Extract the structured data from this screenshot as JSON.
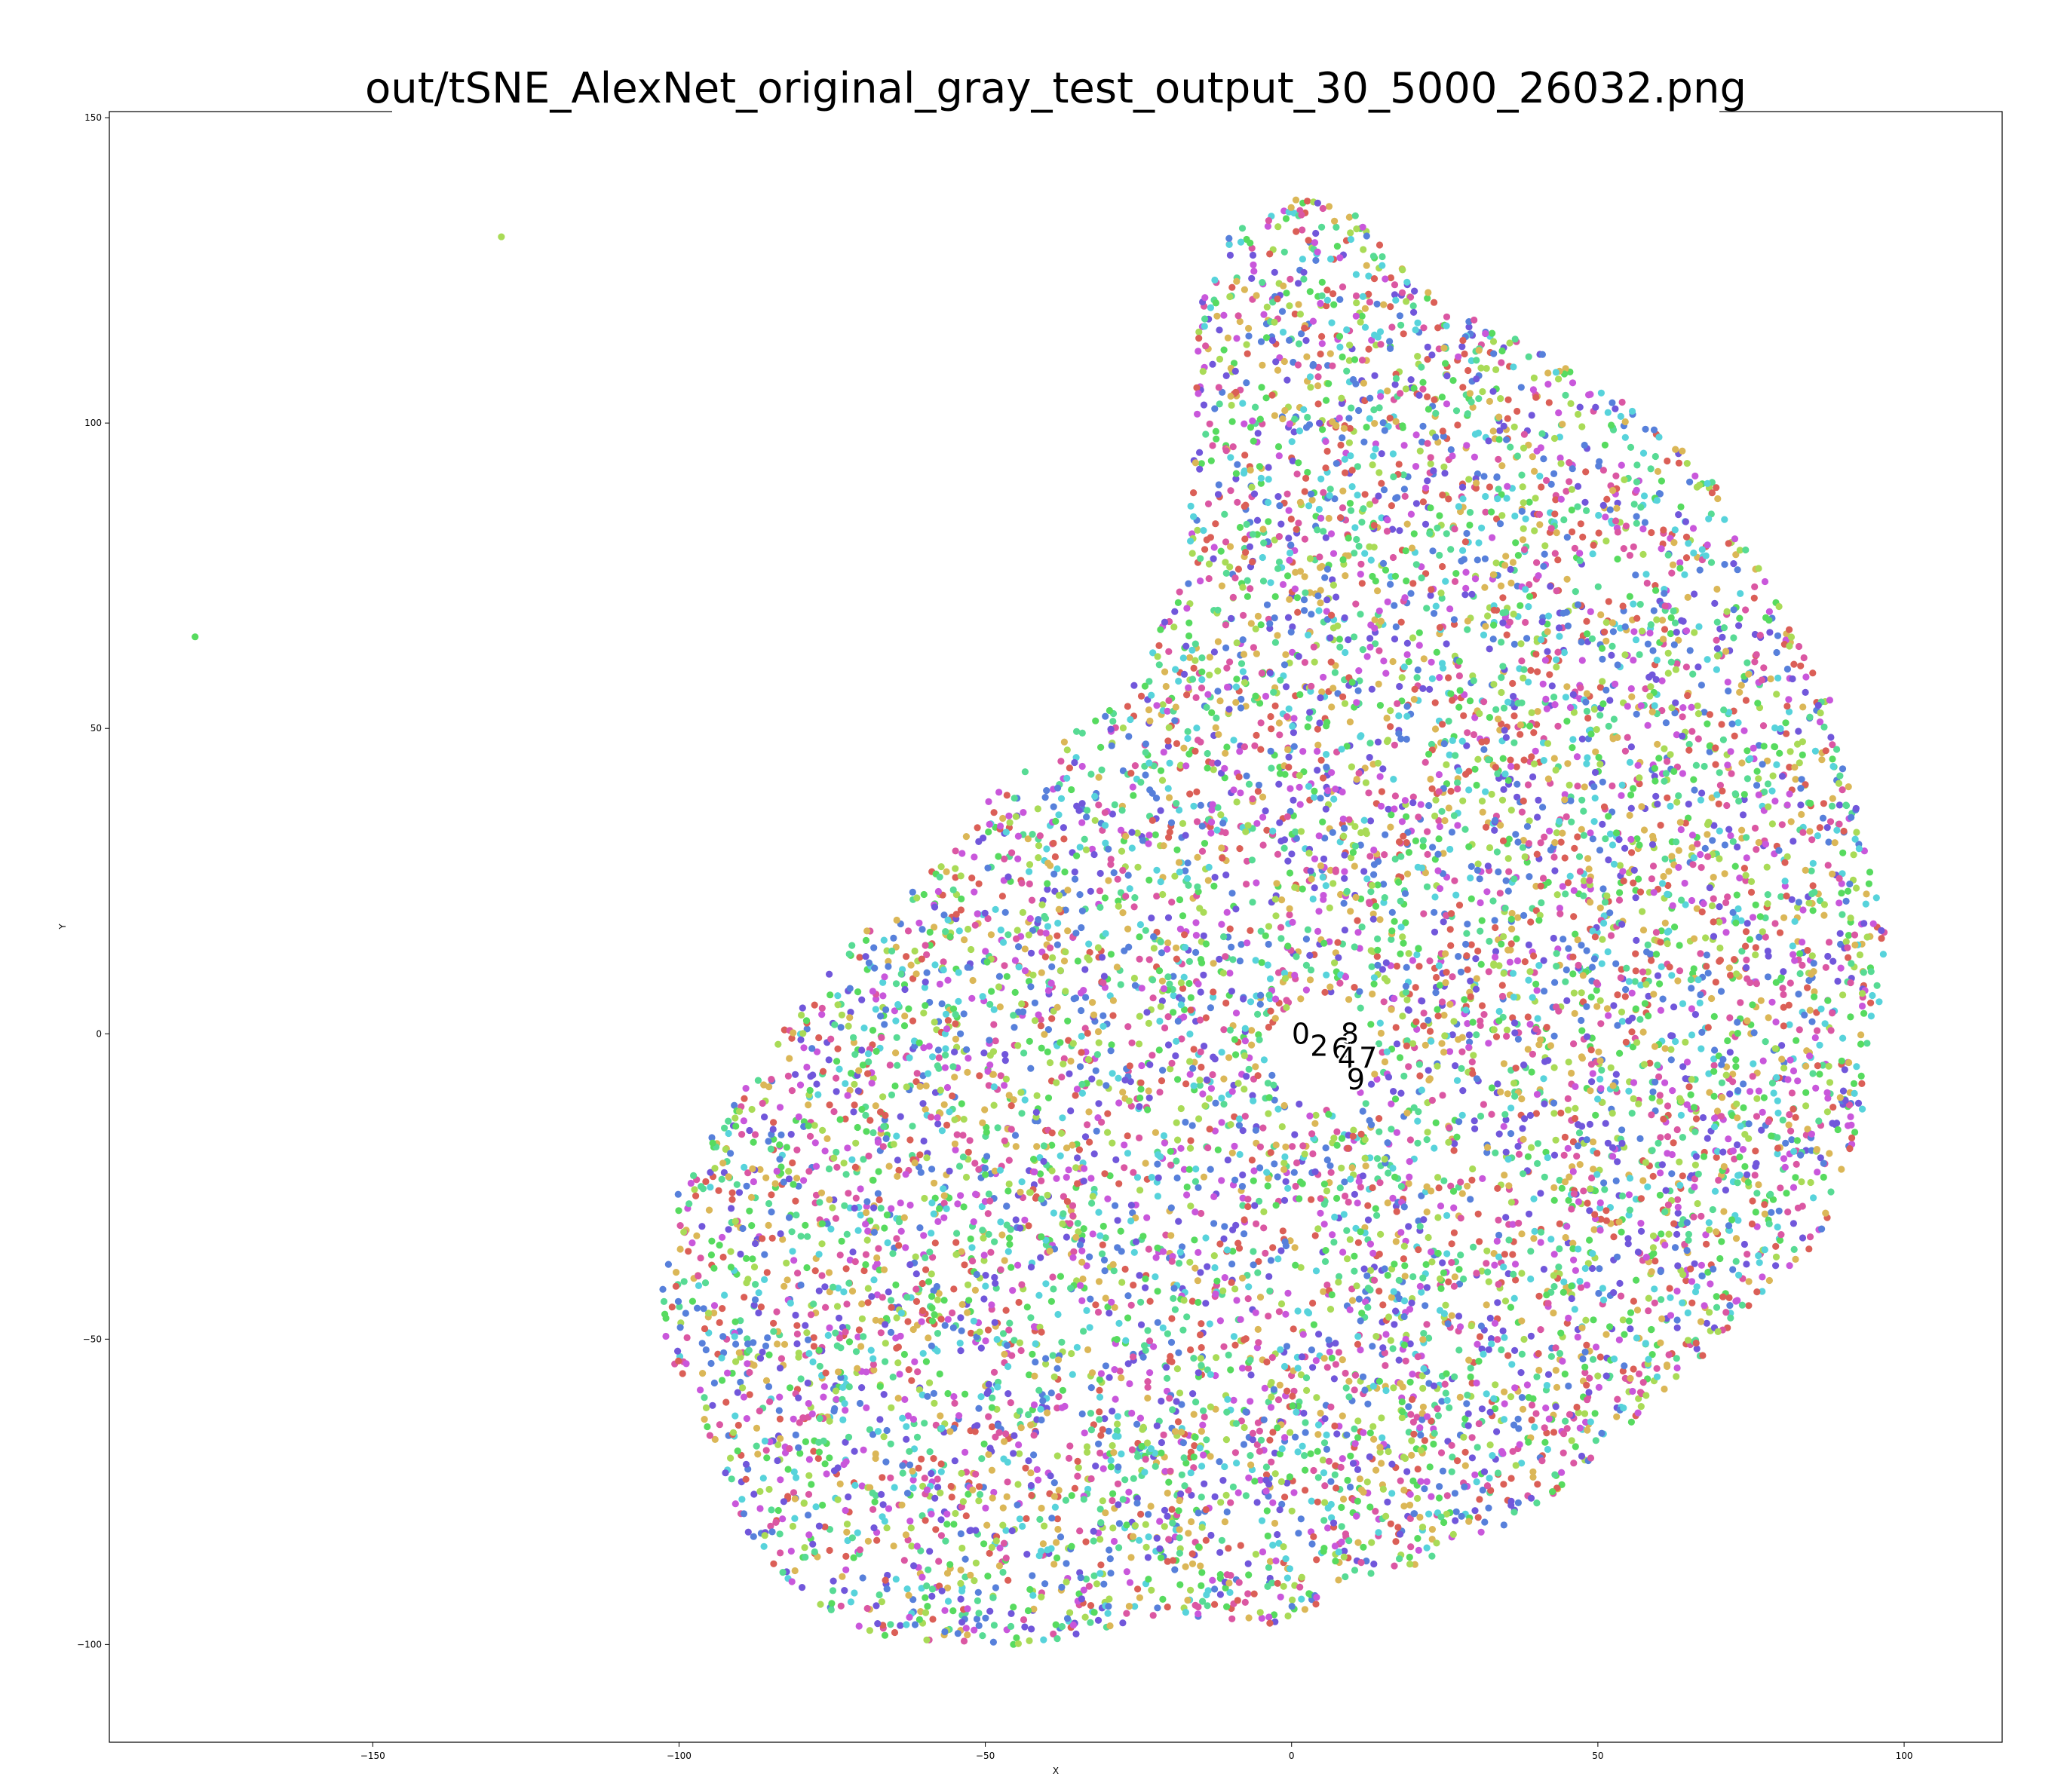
{
  "chart_data": {
    "type": "scatter",
    "title": "out/tSNE_AlexNet_original_gray_test_output_30_5000_26032.png",
    "xlabel": "X",
    "ylabel": "Y",
    "xlim": [
      -193,
      116
    ],
    "ylim": [
      -116,
      151
    ],
    "xticks": [
      -150,
      -100,
      -50,
      0,
      50,
      100
    ],
    "xtick_labels": [
      "−150",
      "−100",
      "−50",
      "0",
      "50",
      "100"
    ],
    "yticks": [
      -100,
      -50,
      0,
      50,
      100,
      150
    ],
    "ytick_labels": [
      "−100",
      "−50",
      "0",
      "50",
      "100",
      "150"
    ],
    "grid": false,
    "legend": "none",
    "class_colors": [
      "#db5f57",
      "#dbb757",
      "#a9db57",
      "#57db5f",
      "#57db94",
      "#57d3db",
      "#5780db",
      "#7157db",
      "#c957db",
      "#db57a3"
    ],
    "point_count": 26032,
    "cluster_labels": [
      {
        "text": "0",
        "x": 1.5,
        "y": 0
      },
      {
        "text": "8",
        "x": 9.5,
        "y": 0
      },
      {
        "text": "2",
        "x": 4.5,
        "y": -2
      },
      {
        "text": "6",
        "x": 8,
        "y": -2.5
      },
      {
        "text": "4",
        "x": 9,
        "y": -4
      },
      {
        "text": "7",
        "x": 12.5,
        "y": -4
      },
      {
        "text": "9",
        "x": 10.5,
        "y": -7.5
      }
    ],
    "outliers": [
      {
        "x": -129,
        "y": 130.5,
        "color": "#a9db57"
      },
      {
        "x": -179,
        "y": 65,
        "color": "#57db5f"
      }
    ],
    "scatter_regions": [
      {
        "xmin": -104,
        "xmax": 102,
        "ymin": -104,
        "ymax": 138
      }
    ]
  }
}
